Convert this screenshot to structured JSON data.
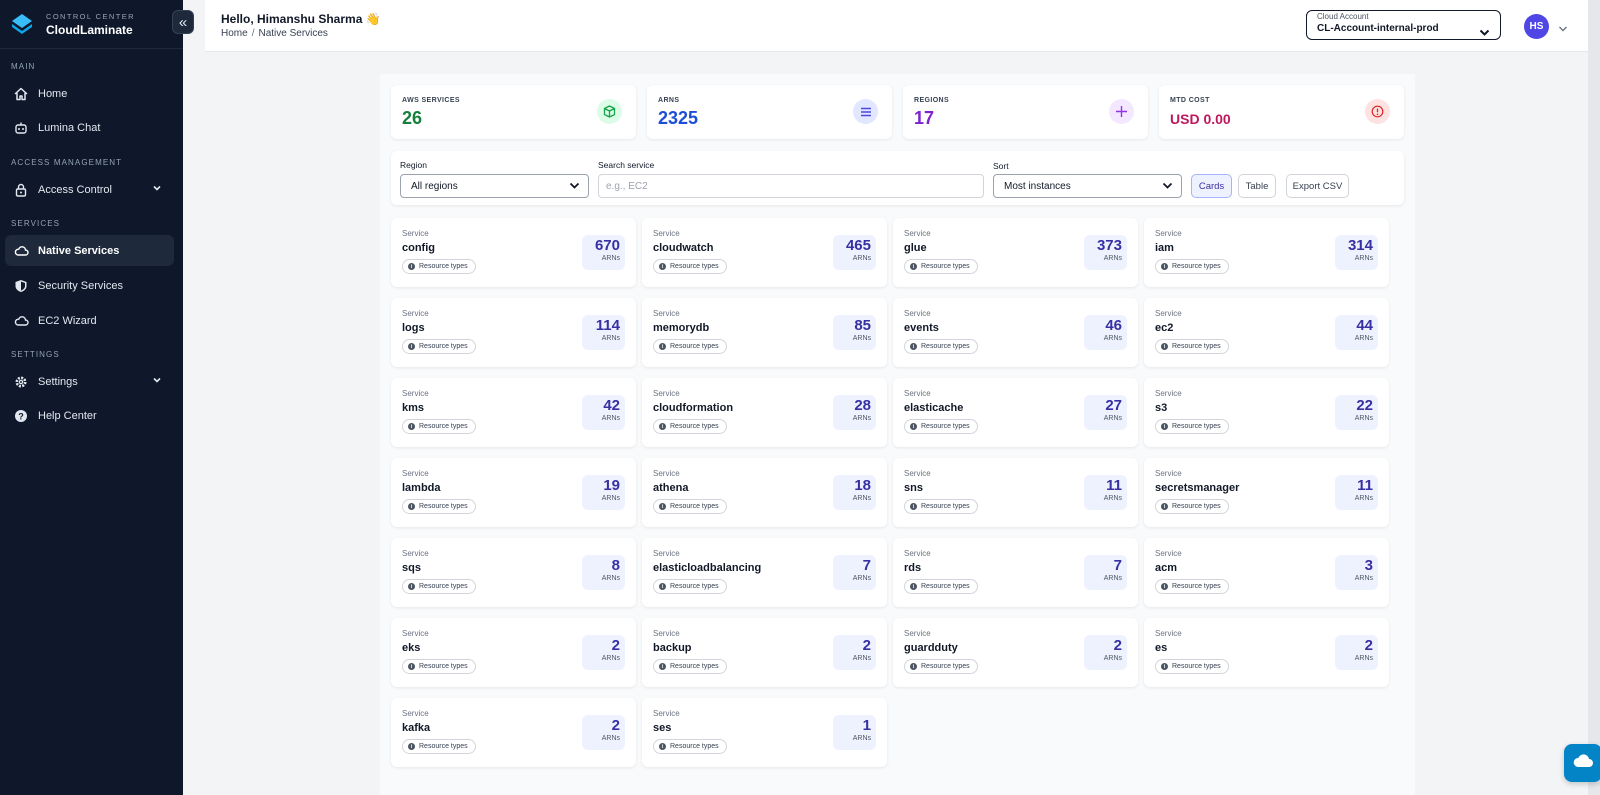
{
  "sidebar": {
    "brand": {
      "subtitle": "CONTROL CENTER",
      "name": "CloudLaminate"
    },
    "collapse_glyph": "«",
    "sections": [
      {
        "label": "MAIN",
        "items": [
          {
            "label": "Home",
            "icon": "home-icon"
          },
          {
            "label": "Lumina Chat",
            "icon": "robot-icon"
          }
        ]
      },
      {
        "label": "ACCESS MANAGEMENT",
        "items": [
          {
            "label": "Access Control",
            "icon": "lock-icon",
            "expandable": true
          }
        ]
      },
      {
        "label": "SERVICES",
        "items": [
          {
            "label": "Native Services",
            "icon": "cloud-icon",
            "active": true
          },
          {
            "label": "Security Services",
            "icon": "shield-icon"
          },
          {
            "label": "EC2 Wizard",
            "icon": "cloud-icon"
          }
        ]
      },
      {
        "label": "SETTINGS",
        "items": [
          {
            "label": "Settings",
            "icon": "gear-icon",
            "expandable": true
          },
          {
            "label": "Help Center",
            "icon": "help-icon"
          }
        ]
      }
    ]
  },
  "header": {
    "greeting": "Hello, Himanshu Sharma",
    "greeting_emoji": "👋",
    "breadcrumb": {
      "home": "Home",
      "separator": "/",
      "current": "Native Services"
    },
    "account": {
      "label": "Cloud Account",
      "value": "CL-Account-internal-prod"
    },
    "avatar_initials": "HS"
  },
  "stats": [
    {
      "label": "AWS SERVICES",
      "value": "26",
      "color": "#15803d",
      "icon": "cube-icon",
      "icon_bg": "#dcfce7",
      "icon_color": "#16a34a"
    },
    {
      "label": "ARNS",
      "value": "2325",
      "color": "#1d4ed8",
      "icon": "list-icon",
      "icon_bg": "#e0e7ff",
      "icon_color": "#4f46e5"
    },
    {
      "label": "REGIONS",
      "value": "17",
      "color": "#7e22ce",
      "icon": "plus-icon",
      "icon_bg": "#f3e8ff",
      "icon_color": "#9333ea"
    },
    {
      "label": "MTD COST",
      "value": "USD 0.00",
      "color": "#be185d",
      "icon": "info-icon",
      "icon_bg": "#fee2e2",
      "icon_color": "#dc2626"
    }
  ],
  "filters": {
    "region_label": "Region",
    "region_value": "All regions",
    "search_label": "Search service",
    "search_placeholder": "e.g., EC2",
    "sort_label": "Sort",
    "sort_value": "Most instances",
    "view_cards": "Cards",
    "view_table": "Table",
    "export": "Export CSV"
  },
  "services": {
    "kicker": "Service",
    "pill": "Resource types",
    "unit": "ARNs",
    "items": [
      {
        "name": "config",
        "count": "670"
      },
      {
        "name": "cloudwatch",
        "count": "465"
      },
      {
        "name": "glue",
        "count": "373"
      },
      {
        "name": "iam",
        "count": "314"
      },
      {
        "name": "logs",
        "count": "114"
      },
      {
        "name": "memorydb",
        "count": "85"
      },
      {
        "name": "events",
        "count": "46"
      },
      {
        "name": "ec2",
        "count": "44"
      },
      {
        "name": "kms",
        "count": "42"
      },
      {
        "name": "cloudformation",
        "count": "28"
      },
      {
        "name": "elasticache",
        "count": "27"
      },
      {
        "name": "s3",
        "count": "22"
      },
      {
        "name": "lambda",
        "count": "19"
      },
      {
        "name": "athena",
        "count": "18"
      },
      {
        "name": "sns",
        "count": "11"
      },
      {
        "name": "secretsmanager",
        "count": "11"
      },
      {
        "name": "sqs",
        "count": "8"
      },
      {
        "name": "elasticloadbalancing",
        "count": "7"
      },
      {
        "name": "rds",
        "count": "7"
      },
      {
        "name": "acm",
        "count": "3"
      },
      {
        "name": "eks",
        "count": "2"
      },
      {
        "name": "backup",
        "count": "2"
      },
      {
        "name": "guardduty",
        "count": "2"
      },
      {
        "name": "es",
        "count": "2"
      },
      {
        "name": "kafka",
        "count": "2"
      },
      {
        "name": "ses",
        "count": "1"
      }
    ]
  }
}
